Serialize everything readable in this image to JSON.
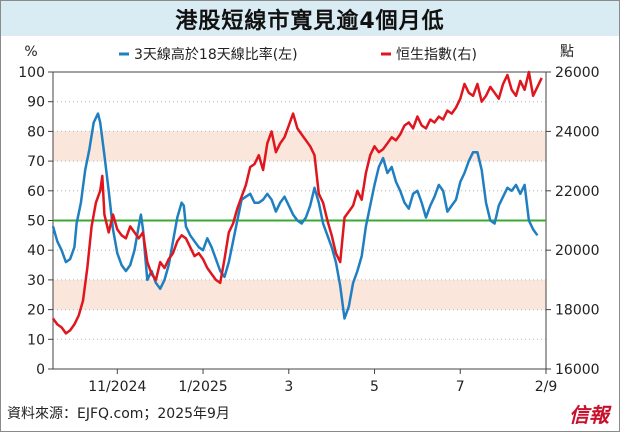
{
  "title": "港股短線市寬見逾4個月低",
  "source": "資料來源：EJFQ.com；2025年9月",
  "brand": "信報",
  "colors": {
    "blue_series": "#1f7fc0",
    "red_series": "#e0161f",
    "green_line": "#3aaa35",
    "band_fill": "#fbe6dc",
    "grid": "#b5b5b5",
    "title_bg": "#d9ecf3"
  },
  "chart_data": {
    "type": "line",
    "title": "港股短線市寬見逾4個月低",
    "left_axis": {
      "unit": "%",
      "ylim": [
        0,
        100
      ],
      "ticks": [
        0,
        10,
        20,
        30,
        40,
        50,
        60,
        70,
        80,
        90,
        100
      ]
    },
    "right_axis": {
      "unit": "點",
      "ylim": [
        16000,
        26000
      ],
      "ticks": [
        16000,
        18000,
        20000,
        22000,
        24000,
        26000
      ]
    },
    "x_ticks": [
      "11/2024",
      "1/2025",
      "3",
      "5",
      "7",
      "2/9"
    ],
    "x_tick_positions": [
      1.5,
      3.5,
      5.5,
      7.5,
      9.5,
      11.5
    ],
    "x_range": [
      0,
      11.5
    ],
    "reference_line": {
      "axis": "left",
      "value": 50
    },
    "bands": [
      {
        "axis": "left",
        "from": 20,
        "to": 30
      },
      {
        "axis": "left",
        "from": 70,
        "to": 80
      }
    ],
    "grid": "horizontal dotted",
    "legend_position": "top",
    "series": [
      {
        "name": "3天線高於18天線比率(左)",
        "axis": "left",
        "points": [
          [
            0,
            48
          ],
          [
            0.1,
            43
          ],
          [
            0.2,
            40
          ],
          [
            0.3,
            36
          ],
          [
            0.4,
            37
          ],
          [
            0.5,
            41
          ],
          [
            0.55,
            49
          ],
          [
            0.65,
            56
          ],
          [
            0.75,
            67
          ],
          [
            0.85,
            74
          ],
          [
            0.95,
            83
          ],
          [
            1.05,
            86
          ],
          [
            1.1,
            83
          ],
          [
            1.2,
            72
          ],
          [
            1.3,
            60
          ],
          [
            1.4,
            47
          ],
          [
            1.5,
            39
          ],
          [
            1.6,
            35
          ],
          [
            1.7,
            33
          ],
          [
            1.8,
            35
          ],
          [
            1.9,
            40
          ],
          [
            2.0,
            48
          ],
          [
            2.05,
            52
          ],
          [
            2.1,
            47
          ],
          [
            2.15,
            38
          ],
          [
            2.2,
            30
          ],
          [
            2.3,
            33
          ],
          [
            2.4,
            29
          ],
          [
            2.5,
            27
          ],
          [
            2.6,
            30
          ],
          [
            2.7,
            35
          ],
          [
            2.8,
            43
          ],
          [
            2.9,
            51
          ],
          [
            3.0,
            56
          ],
          [
            3.05,
            55
          ],
          [
            3.1,
            48
          ],
          [
            3.2,
            45
          ],
          [
            3.3,
            43
          ],
          [
            3.4,
            41
          ],
          [
            3.5,
            40
          ],
          [
            3.6,
            44
          ],
          [
            3.7,
            41
          ],
          [
            3.8,
            37
          ],
          [
            3.9,
            33
          ],
          [
            4.0,
            31
          ],
          [
            4.1,
            36
          ],
          [
            4.2,
            43
          ],
          [
            4.3,
            50
          ],
          [
            4.4,
            57
          ],
          [
            4.5,
            58
          ],
          [
            4.6,
            59
          ],
          [
            4.7,
            56
          ],
          [
            4.8,
            56
          ],
          [
            4.9,
            57
          ],
          [
            5.0,
            59
          ],
          [
            5.1,
            57
          ],
          [
            5.2,
            53
          ],
          [
            5.3,
            56
          ],
          [
            5.4,
            58
          ],
          [
            5.5,
            55
          ],
          [
            5.6,
            52
          ],
          [
            5.7,
            50
          ],
          [
            5.8,
            49
          ],
          [
            5.9,
            51
          ],
          [
            6.0,
            55
          ],
          [
            6.1,
            61
          ],
          [
            6.2,
            56
          ],
          [
            6.3,
            49
          ],
          [
            6.4,
            45
          ],
          [
            6.5,
            41
          ],
          [
            6.6,
            36
          ],
          [
            6.7,
            28
          ],
          [
            6.8,
            17
          ],
          [
            6.9,
            21
          ],
          [
            7.0,
            29
          ],
          [
            7.1,
            33
          ],
          [
            7.2,
            38
          ],
          [
            7.3,
            48
          ],
          [
            7.4,
            55
          ],
          [
            7.5,
            62
          ],
          [
            7.6,
            68
          ],
          [
            7.7,
            71
          ],
          [
            7.8,
            66
          ],
          [
            7.9,
            68
          ],
          [
            8.0,
            63
          ],
          [
            8.1,
            60
          ],
          [
            8.2,
            56
          ],
          [
            8.3,
            54
          ],
          [
            8.4,
            59
          ],
          [
            8.5,
            60
          ],
          [
            8.6,
            56
          ],
          [
            8.7,
            51
          ],
          [
            8.8,
            55
          ],
          [
            8.9,
            58
          ],
          [
            9.0,
            62
          ],
          [
            9.1,
            60
          ],
          [
            9.2,
            53
          ],
          [
            9.3,
            55
          ],
          [
            9.4,
            57
          ],
          [
            9.5,
            63
          ],
          [
            9.6,
            66
          ],
          [
            9.7,
            70
          ],
          [
            9.8,
            73
          ],
          [
            9.9,
            73
          ],
          [
            10.0,
            67
          ],
          [
            10.1,
            56
          ],
          [
            10.2,
            50
          ],
          [
            10.3,
            49
          ],
          [
            10.4,
            55
          ],
          [
            10.5,
            58
          ],
          [
            10.6,
            61
          ],
          [
            10.7,
            60
          ],
          [
            10.8,
            62
          ],
          [
            10.9,
            59
          ],
          [
            11.0,
            62
          ],
          [
            11.1,
            50
          ],
          [
            11.2,
            47
          ],
          [
            11.3,
            45
          ]
        ]
      },
      {
        "name": "恒生指數(右)",
        "axis": "right",
        "points": [
          [
            0,
            17700
          ],
          [
            0.1,
            17500
          ],
          [
            0.2,
            17400
          ],
          [
            0.3,
            17200
          ],
          [
            0.4,
            17300
          ],
          [
            0.5,
            17500
          ],
          [
            0.6,
            17800
          ],
          [
            0.7,
            18300
          ],
          [
            0.8,
            19400
          ],
          [
            0.9,
            20800
          ],
          [
            1.0,
            21600
          ],
          [
            1.1,
            22000
          ],
          [
            1.15,
            22500
          ],
          [
            1.2,
            21200
          ],
          [
            1.3,
            20600
          ],
          [
            1.4,
            21200
          ],
          [
            1.5,
            20700
          ],
          [
            1.6,
            20500
          ],
          [
            1.7,
            20400
          ],
          [
            1.8,
            20800
          ],
          [
            1.9,
            20600
          ],
          [
            2.0,
            20400
          ],
          [
            2.1,
            20600
          ],
          [
            2.2,
            19600
          ],
          [
            2.3,
            19200
          ],
          [
            2.4,
            19000
          ],
          [
            2.5,
            19600
          ],
          [
            2.6,
            19400
          ],
          [
            2.7,
            19700
          ],
          [
            2.8,
            19900
          ],
          [
            2.9,
            20300
          ],
          [
            3.0,
            20500
          ],
          [
            3.1,
            20400
          ],
          [
            3.2,
            20100
          ],
          [
            3.3,
            19800
          ],
          [
            3.4,
            19900
          ],
          [
            3.5,
            19700
          ],
          [
            3.6,
            19400
          ],
          [
            3.7,
            19200
          ],
          [
            3.8,
            19000
          ],
          [
            3.9,
            18900
          ],
          [
            4.0,
            19700
          ],
          [
            4.1,
            20600
          ],
          [
            4.2,
            20900
          ],
          [
            4.3,
            21400
          ],
          [
            4.4,
            21800
          ],
          [
            4.5,
            22200
          ],
          [
            4.6,
            22800
          ],
          [
            4.7,
            22900
          ],
          [
            4.8,
            23200
          ],
          [
            4.9,
            22700
          ],
          [
            5.0,
            23600
          ],
          [
            5.1,
            24000
          ],
          [
            5.2,
            23300
          ],
          [
            5.3,
            23600
          ],
          [
            5.4,
            23800
          ],
          [
            5.5,
            24200
          ],
          [
            5.6,
            24600
          ],
          [
            5.7,
            24100
          ],
          [
            5.8,
            23900
          ],
          [
            5.9,
            23700
          ],
          [
            6.0,
            23500
          ],
          [
            6.1,
            23200
          ],
          [
            6.2,
            21900
          ],
          [
            6.3,
            21600
          ],
          [
            6.4,
            21000
          ],
          [
            6.5,
            20500
          ],
          [
            6.6,
            19900
          ],
          [
            6.7,
            19600
          ],
          [
            6.8,
            21100
          ],
          [
            6.9,
            21300
          ],
          [
            7.0,
            21500
          ],
          [
            7.1,
            22000
          ],
          [
            7.2,
            21700
          ],
          [
            7.3,
            22600
          ],
          [
            7.4,
            23200
          ],
          [
            7.5,
            23500
          ],
          [
            7.6,
            23300
          ],
          [
            7.7,
            23400
          ],
          [
            7.8,
            23600
          ],
          [
            7.9,
            23800
          ],
          [
            8.0,
            23700
          ],
          [
            8.1,
            23900
          ],
          [
            8.2,
            24200
          ],
          [
            8.3,
            24300
          ],
          [
            8.4,
            24100
          ],
          [
            8.5,
            24500
          ],
          [
            8.6,
            24200
          ],
          [
            8.7,
            24100
          ],
          [
            8.8,
            24400
          ],
          [
            8.9,
            24300
          ],
          [
            9.0,
            24500
          ],
          [
            9.1,
            24400
          ],
          [
            9.2,
            24700
          ],
          [
            9.3,
            24600
          ],
          [
            9.4,
            24800
          ],
          [
            9.5,
            25100
          ],
          [
            9.6,
            25600
          ],
          [
            9.7,
            25300
          ],
          [
            9.8,
            25200
          ],
          [
            9.9,
            25600
          ],
          [
            10.0,
            25000
          ],
          [
            10.1,
            25200
          ],
          [
            10.2,
            25500
          ],
          [
            10.3,
            25300
          ],
          [
            10.4,
            25100
          ],
          [
            10.5,
            25600
          ],
          [
            10.6,
            25900
          ],
          [
            10.7,
            25400
          ],
          [
            10.8,
            25200
          ],
          [
            10.9,
            25700
          ],
          [
            11.0,
            25400
          ],
          [
            11.1,
            26000
          ],
          [
            11.2,
            25200
          ],
          [
            11.3,
            25500
          ],
          [
            11.4,
            25800
          ]
        ]
      }
    ]
  }
}
